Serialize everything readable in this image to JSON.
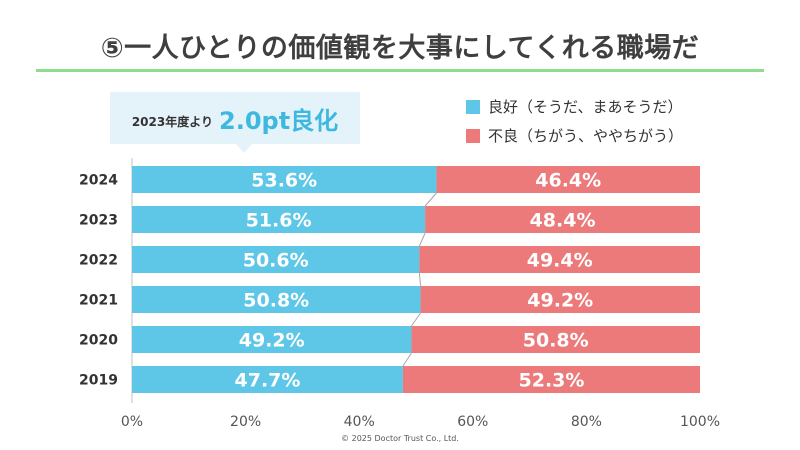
{
  "title": "⑤一人ひとりの価値観を大事にしてくれる職場だ",
  "callout": {
    "prefix": "2023年度より",
    "highlight": "2.0pt良化"
  },
  "copyright": "© 2025 Doctor Trust Co., Ltd.",
  "colors": {
    "good": "#5ec6e6",
    "bad": "#ec7a7b",
    "rule": "#8fdc8f",
    "callout_bg": "#e4f2fa",
    "callout_text": "#3fb8e0"
  },
  "chart_data": {
    "type": "bar",
    "orientation": "horizontal",
    "stacked": true,
    "categories": [
      "2024",
      "2023",
      "2022",
      "2021",
      "2020",
      "2019"
    ],
    "series": [
      {
        "name": "良好（そうだ、まあそうだ）",
        "values": [
          53.6,
          51.6,
          50.6,
          50.8,
          49.2,
          47.7
        ],
        "labels": [
          "53.6%",
          "51.6%",
          "50.6%",
          "50.8%",
          "49.2%",
          "47.7%"
        ],
        "color": "#5ec6e6"
      },
      {
        "name": "不良（ちがう、ややちがう）",
        "values": [
          46.4,
          48.4,
          49.4,
          49.2,
          50.8,
          52.3
        ],
        "labels": [
          "46.4%",
          "48.4%",
          "49.4%",
          "49.2%",
          "50.8%",
          "52.3%"
        ],
        "color": "#ec7a7b"
      }
    ],
    "xlim": [
      0,
      100
    ],
    "xticks": [
      "0%",
      "20%",
      "40%",
      "60%",
      "80%",
      "100%"
    ],
    "legend_position": "top-right",
    "connector_lines": true
  }
}
